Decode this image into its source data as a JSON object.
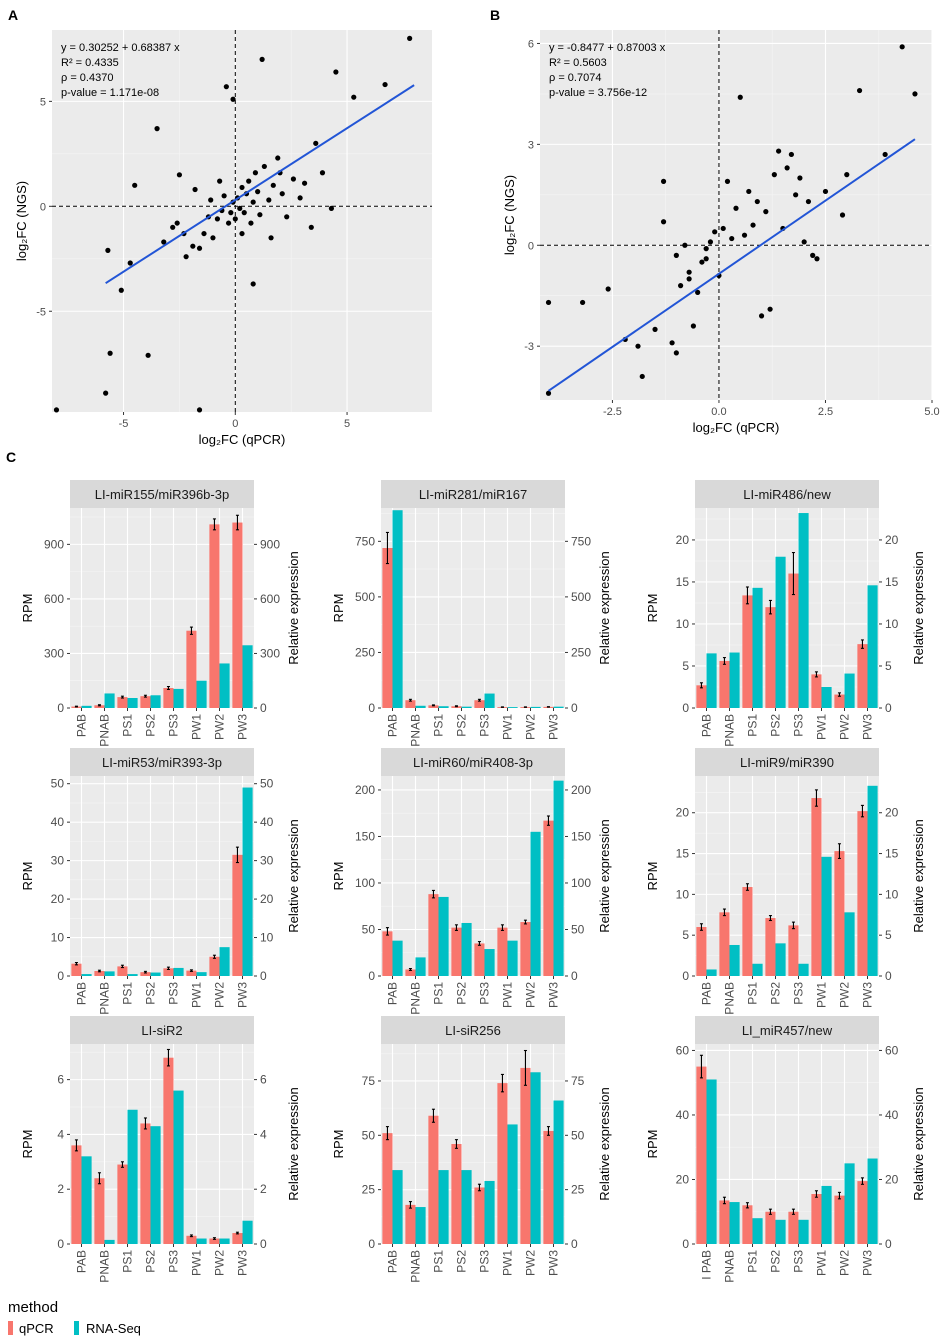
{
  "colors": {
    "panel_bg": "#ebebeb",
    "grid": "#ffffff",
    "strip_bg": "#d9d9d9",
    "qpcr": "#f8766d",
    "rnaseq": "#00bfc4",
    "fit_line": "#2255d6",
    "point": "#000000"
  },
  "legend": {
    "title": "method",
    "items": [
      "qPCR",
      "RNA-Seq"
    ]
  },
  "chart_data": [
    {
      "id": "A",
      "type": "scatter",
      "panel_label": "A",
      "xlabel": "log₂FC (qPCR)",
      "ylabel": "log₂FC (NGS)",
      "xlim": [
        -8.2,
        8.8
      ],
      "ylim": [
        -9.8,
        8.4
      ],
      "xticks": [
        -5,
        0,
        5
      ],
      "xtick_labels": [
        "-5",
        "0",
        "5"
      ],
      "yticks": [
        -5,
        0,
        5
      ],
      "ytick_labels": [
        "-5",
        "0",
        "5"
      ],
      "fit": {
        "intercept": 0.30252,
        "slope": 0.68387,
        "x_range": [
          -5.8,
          8.0
        ]
      },
      "stats": [
        "y = 0.30252 + 0.68387 x",
        "R² = 0.4335",
        "ρ = 0.4370",
        "p-value = 1.171e-08"
      ],
      "points": [
        [
          -8.0,
          -9.7
        ],
        [
          -5.8,
          -8.9
        ],
        [
          -5.6,
          -7.0
        ],
        [
          -3.9,
          -7.1
        ],
        [
          -1.6,
          -9.7
        ],
        [
          -5.7,
          -2.1
        ],
        [
          -5.1,
          -4.0
        ],
        [
          -4.7,
          -2.7
        ],
        [
          -4.5,
          1.0
        ],
        [
          -3.5,
          3.7
        ],
        [
          -3.2,
          -1.7
        ],
        [
          -2.8,
          -1.0
        ],
        [
          -2.6,
          -0.8
        ],
        [
          -2.3,
          -1.3
        ],
        [
          -2.2,
          -2.4
        ],
        [
          -1.9,
          -1.9
        ],
        [
          -1.6,
          -2.0
        ],
        [
          -1.4,
          -1.3
        ],
        [
          -1.2,
          -0.5
        ],
        [
          -1.0,
          -1.5
        ],
        [
          -0.8,
          -0.6
        ],
        [
          -0.6,
          -0.2
        ],
        [
          -0.5,
          0.5
        ],
        [
          -0.3,
          -0.8
        ],
        [
          -0.2,
          -0.3
        ],
        [
          -0.1,
          0.2
        ],
        [
          0.0,
          -0.6
        ],
        [
          0.1,
          0.4
        ],
        [
          0.2,
          -0.1
        ],
        [
          0.3,
          0.9
        ],
        [
          0.4,
          -0.3
        ],
        [
          0.5,
          0.6
        ],
        [
          0.6,
          1.2
        ],
        [
          0.7,
          -0.8
        ],
        [
          0.8,
          0.2
        ],
        [
          0.9,
          1.6
        ],
        [
          1.0,
          0.7
        ],
        [
          1.1,
          -0.4
        ],
        [
          1.3,
          1.9
        ],
        [
          1.5,
          0.3
        ],
        [
          1.7,
          1.0
        ],
        [
          1.9,
          2.3
        ],
        [
          2.1,
          0.6
        ],
        [
          2.3,
          -0.5
        ],
        [
          2.6,
          1.3
        ],
        [
          2.9,
          0.4
        ],
        [
          3.1,
          1.1
        ],
        [
          3.4,
          -1.0
        ],
        [
          3.6,
          3.0
        ],
        [
          3.9,
          1.6
        ],
        [
          4.3,
          -0.1
        ],
        [
          4.5,
          6.4
        ],
        [
          5.3,
          5.2
        ],
        [
          6.7,
          5.8
        ],
        [
          7.8,
          8.0
        ],
        [
          -0.4,
          5.7
        ],
        [
          -0.1,
          5.1
        ],
        [
          1.2,
          7.0
        ],
        [
          0.8,
          -3.7
        ],
        [
          -2.5,
          1.5
        ],
        [
          -1.8,
          0.8
        ],
        [
          -0.7,
          1.2
        ],
        [
          1.6,
          -1.5
        ],
        [
          0.3,
          -1.3
        ],
        [
          2.0,
          1.6
        ],
        [
          -1.1,
          0.3
        ]
      ]
    },
    {
      "id": "B",
      "type": "scatter",
      "panel_label": "B",
      "xlabel": "log₂FC (qPCR)",
      "ylabel": "log₂FC (NGS)",
      "xlim": [
        -4.2,
        5.0
      ],
      "ylim": [
        -4.6,
        6.4
      ],
      "xticks": [
        -2.5,
        0.0,
        2.5,
        5.0
      ],
      "xtick_labels": [
        "-2.5",
        "0.0",
        "2.5",
        "5.0"
      ],
      "yticks": [
        -3,
        0,
        3,
        6
      ],
      "ytick_labels": [
        "-3",
        "0",
        "3",
        "6"
      ],
      "fit": {
        "intercept": -0.8477,
        "slope": 0.87003,
        "x_range": [
          -4.0,
          4.6
        ]
      },
      "stats": [
        "y = -0.8477 + 0.87003 x",
        "R² = 0.5603",
        "ρ = 0.7074",
        "p-value = 3.756e-12"
      ],
      "points": [
        [
          -4.0,
          -4.4
        ],
        [
          -4.0,
          -1.7
        ],
        [
          -3.2,
          -1.7
        ],
        [
          -2.6,
          -1.3
        ],
        [
          -2.2,
          -2.8
        ],
        [
          -1.9,
          -3.0
        ],
        [
          -1.8,
          -3.9
        ],
        [
          -1.5,
          -2.5
        ],
        [
          -1.3,
          1.9
        ],
        [
          -1.3,
          0.7
        ],
        [
          -1.1,
          -2.9
        ],
        [
          -1.0,
          -3.2
        ],
        [
          -1.0,
          -0.3
        ],
        [
          -0.9,
          -1.2
        ],
        [
          -0.8,
          0.0
        ],
        [
          -0.7,
          -0.8
        ],
        [
          -0.6,
          -2.4
        ],
        [
          -0.5,
          -1.4
        ],
        [
          -0.4,
          -0.5
        ],
        [
          -0.3,
          -0.1
        ],
        [
          -0.2,
          0.1
        ],
        [
          -0.1,
          0.4
        ],
        [
          0.0,
          -0.9
        ],
        [
          0.1,
          0.5
        ],
        [
          0.2,
          1.9
        ],
        [
          0.3,
          0.2
        ],
        [
          0.4,
          1.1
        ],
        [
          0.5,
          4.4
        ],
        [
          0.6,
          0.3
        ],
        [
          0.7,
          1.6
        ],
        [
          0.8,
          0.6
        ],
        [
          0.9,
          1.3
        ],
        [
          1.0,
          -2.1
        ],
        [
          1.1,
          1.0
        ],
        [
          1.2,
          -1.9
        ],
        [
          1.3,
          2.1
        ],
        [
          1.4,
          2.8
        ],
        [
          1.5,
          0.5
        ],
        [
          1.6,
          2.3
        ],
        [
          1.7,
          2.7
        ],
        [
          1.8,
          1.5
        ],
        [
          1.9,
          2.0
        ],
        [
          2.0,
          0.1
        ],
        [
          2.1,
          1.3
        ],
        [
          2.2,
          -0.3
        ],
        [
          2.3,
          -0.4
        ],
        [
          2.5,
          1.6
        ],
        [
          2.9,
          0.9
        ],
        [
          3.0,
          2.1
        ],
        [
          3.3,
          4.6
        ],
        [
          3.9,
          2.7
        ],
        [
          4.3,
          5.9
        ],
        [
          4.6,
          4.5
        ],
        [
          -0.7,
          -1.0
        ],
        [
          -0.3,
          -0.4
        ]
      ]
    },
    {
      "id": "C1",
      "type": "bar",
      "title": "LI-miR155/miR396b-3p",
      "ylabel": "RPM",
      "y2label": "Relative expression",
      "ylim": [
        0,
        1100
      ],
      "yticks": [
        0,
        300,
        600,
        900
      ],
      "ytick_labels": [
        "0",
        "300",
        "600",
        "900"
      ],
      "categories": [
        "PAB",
        "PNAB",
        "PS1",
        "PS2",
        "PS3",
        "PW1",
        "PW2",
        "PW3"
      ],
      "series": [
        {
          "name": "qPCR",
          "values": [
            8,
            15,
            60,
            65,
            110,
            425,
            1010,
            1020
          ],
          "errors": [
            2,
            3,
            5,
            5,
            8,
            20,
            30,
            40
          ]
        },
        {
          "name": "RNA-Seq",
          "values": [
            12,
            80,
            55,
            70,
            105,
            150,
            245,
            345
          ],
          "errors": [
            0,
            0,
            0,
            0,
            0,
            0,
            0,
            0
          ]
        }
      ]
    },
    {
      "id": "C2",
      "type": "bar",
      "title": "LI-miR281/miR167",
      "ylabel": "RPM",
      "y2label": "Relative expression",
      "ylim": [
        0,
        900
      ],
      "yticks": [
        0,
        250,
        500,
        750
      ],
      "ytick_labels": [
        "0",
        "250",
        "500",
        "750"
      ],
      "categories": [
        "PAB",
        "PNAB",
        "PS1",
        "PS2",
        "PS3",
        "PW1",
        "PW2",
        "PW3"
      ],
      "series": [
        {
          "name": "qPCR",
          "values": [
            720,
            35,
            12,
            8,
            35,
            4,
            4,
            5
          ],
          "errors": [
            70,
            4,
            2,
            2,
            4,
            1,
            1,
            1
          ]
        },
        {
          "name": "RNA-Seq",
          "values": [
            890,
            10,
            8,
            6,
            65,
            4,
            5,
            6
          ],
          "errors": [
            0,
            0,
            0,
            0,
            0,
            0,
            0,
            0
          ]
        }
      ]
    },
    {
      "id": "C3",
      "type": "bar",
      "title": "LI-miR486/new",
      "ylabel": "RPM",
      "y2label": "Relative expression",
      "ylim": [
        0,
        23.8
      ],
      "yticks": [
        0,
        5,
        10,
        15,
        20
      ],
      "ytick_labels": [
        "0",
        "5",
        "10",
        "15",
        "20"
      ],
      "categories": [
        "PAB",
        "PNAB",
        "PS1",
        "PS2",
        "PS3",
        "PW1",
        "PW2",
        "PW3"
      ],
      "series": [
        {
          "name": "qPCR",
          "values": [
            2.7,
            5.6,
            13.4,
            12.0,
            16.0,
            4.0,
            1.6,
            7.6
          ],
          "errors": [
            0.3,
            0.4,
            1.0,
            0.8,
            2.5,
            0.3,
            0.2,
            0.5
          ]
        },
        {
          "name": "RNA-Seq",
          "values": [
            6.5,
            6.6,
            14.3,
            18.0,
            23.2,
            2.5,
            4.1,
            14.6
          ],
          "errors": [
            0,
            0,
            0,
            0,
            0,
            0,
            0,
            0
          ]
        }
      ]
    },
    {
      "id": "C4",
      "type": "bar",
      "title": "LI-miR53/miR393-3p",
      "ylabel": "RPM",
      "y2label": "Relative expression",
      "ylim": [
        0,
        52
      ],
      "yticks": [
        0,
        10,
        20,
        30,
        40,
        50
      ],
      "ytick_labels": [
        "0",
        "10",
        "20",
        "30",
        "40",
        "50"
      ],
      "categories": [
        "PAB",
        "PNAB",
        "PS1",
        "PS2",
        "PS3",
        "PW1",
        "PW2",
        "PW3"
      ],
      "series": [
        {
          "name": "qPCR",
          "values": [
            3.2,
            1.3,
            2.5,
            1.0,
            2.0,
            1.4,
            5.0,
            31.5
          ],
          "errors": [
            0.3,
            0.2,
            0.3,
            0.2,
            0.3,
            0.2,
            0.4,
            2.0
          ]
        },
        {
          "name": "RNA-Seq",
          "values": [
            0.5,
            1.2,
            0.5,
            0.9,
            2.1,
            1.0,
            7.5,
            49.0
          ],
          "errors": [
            0,
            0,
            0,
            0,
            0,
            0,
            0,
            0
          ]
        }
      ]
    },
    {
      "id": "C5",
      "type": "bar",
      "title": "LI-miR60/miR408-3p",
      "ylabel": "RPM",
      "y2label": "Relative expression",
      "ylim": [
        0,
        215
      ],
      "yticks": [
        0,
        50,
        100,
        150,
        200
      ],
      "ytick_labels": [
        "0",
        "50",
        "100",
        "150",
        "200"
      ],
      "categories": [
        "PAB",
        "PNAB",
        "PS1",
        "PS2",
        "PS3",
        "PW1",
        "PW2",
        "PW3"
      ],
      "series": [
        {
          "name": "qPCR",
          "values": [
            48,
            7,
            88,
            52,
            35,
            52,
            58,
            167
          ],
          "errors": [
            4,
            1,
            4,
            3,
            2,
            3,
            2,
            5
          ]
        },
        {
          "name": "RNA-Seq",
          "values": [
            38,
            20,
            85,
            57,
            29,
            38,
            155,
            210
          ],
          "errors": [
            0,
            0,
            0,
            0,
            0,
            0,
            0,
            0
          ]
        }
      ]
    },
    {
      "id": "C6",
      "type": "bar",
      "title": "LI-miR9/miR390",
      "ylabel": "RPM",
      "y2label": "Relative expression",
      "ylim": [
        0,
        24.5
      ],
      "yticks": [
        0,
        5,
        10,
        15,
        20
      ],
      "ytick_labels": [
        "0",
        "5",
        "10",
        "15",
        "20"
      ],
      "categories": [
        "PAB",
        "PNAB",
        "PS1",
        "PS2",
        "PS3",
        "PW1",
        "PW2",
        "PW3"
      ],
      "series": [
        {
          "name": "qPCR",
          "values": [
            6.0,
            7.8,
            10.9,
            7.1,
            6.2,
            21.8,
            15.3,
            20.2
          ],
          "errors": [
            0.4,
            0.4,
            0.4,
            0.3,
            0.4,
            1.0,
            0.9,
            0.7
          ]
        },
        {
          "name": "RNA-Seq",
          "values": [
            0.8,
            3.8,
            1.5,
            4.0,
            1.5,
            14.6,
            7.8,
            23.3
          ],
          "errors": [
            0,
            0,
            0,
            0,
            0,
            0,
            0,
            0
          ]
        }
      ]
    },
    {
      "id": "C7",
      "type": "bar",
      "title": "LI-siR2",
      "ylabel": "RPM",
      "y2label": "Relative expression",
      "ylim": [
        0,
        7.3
      ],
      "yticks": [
        0,
        2,
        4,
        6
      ],
      "ytick_labels": [
        "0",
        "2",
        "4",
        "6"
      ],
      "categories": [
        "PAB",
        "PNAB",
        "PS1",
        "PS2",
        "PS3",
        "PW1",
        "PW2",
        "PW3"
      ],
      "series": [
        {
          "name": "qPCR",
          "values": [
            3.6,
            2.4,
            2.9,
            4.4,
            6.8,
            0.3,
            0.2,
            0.4
          ],
          "errors": [
            0.2,
            0.2,
            0.1,
            0.2,
            0.3,
            0.03,
            0.03,
            0.03
          ]
        },
        {
          "name": "RNA-Seq",
          "values": [
            3.2,
            0.15,
            4.9,
            4.3,
            5.6,
            0.2,
            0.2,
            0.85
          ],
          "errors": [
            0,
            0,
            0,
            0,
            0,
            0,
            0,
            0
          ]
        }
      ]
    },
    {
      "id": "C8",
      "type": "bar",
      "title": "LI-siR256",
      "ylabel": "RPM",
      "y2label": "Relative expression",
      "ylim": [
        0,
        92
      ],
      "yticks": [
        0,
        25,
        50,
        75
      ],
      "ytick_labels": [
        "0",
        "25",
        "50",
        "75"
      ],
      "categories": [
        "PAB",
        "PNAB",
        "PS1",
        "PS2",
        "PS3",
        "PW1",
        "PW2",
        "PW3"
      ],
      "series": [
        {
          "name": "qPCR",
          "values": [
            51,
            18,
            59,
            46,
            26,
            74,
            81,
            52
          ],
          "errors": [
            3,
            1.5,
            3,
            2,
            1.5,
            4,
            8,
            2
          ]
        },
        {
          "name": "RNA-Seq",
          "values": [
            34,
            17,
            34,
            34,
            29,
            55,
            79,
            66
          ],
          "errors": [
            0,
            0,
            0,
            0,
            0,
            0,
            0,
            0
          ]
        }
      ]
    },
    {
      "id": "C9",
      "type": "bar",
      "title": "LI_miR457/new",
      "ylabel": "RPM",
      "y2label": "Relative expression",
      "ylim": [
        0,
        62
      ],
      "yticks": [
        0,
        20,
        40,
        60
      ],
      "ytick_labels": [
        "0",
        "20",
        "40",
        "60"
      ],
      "categories": [
        "I PAB",
        "PNAB",
        "PS1",
        "PS2",
        "PS3",
        "PW1",
        "PW2",
        "PW3"
      ],
      "series": [
        {
          "name": "qPCR",
          "values": [
            55,
            13.5,
            12,
            10,
            10,
            15.5,
            15,
            19.5
          ],
          "errors": [
            3.5,
            1,
            0.8,
            0.8,
            0.8,
            1,
            1,
            1
          ]
        },
        {
          "name": "RNA-Seq",
          "values": [
            51,
            13,
            8,
            7.5,
            7.5,
            18,
            25,
            26.5
          ],
          "errors": [
            0,
            0,
            0,
            0,
            0,
            0,
            0,
            0
          ]
        }
      ]
    }
  ]
}
